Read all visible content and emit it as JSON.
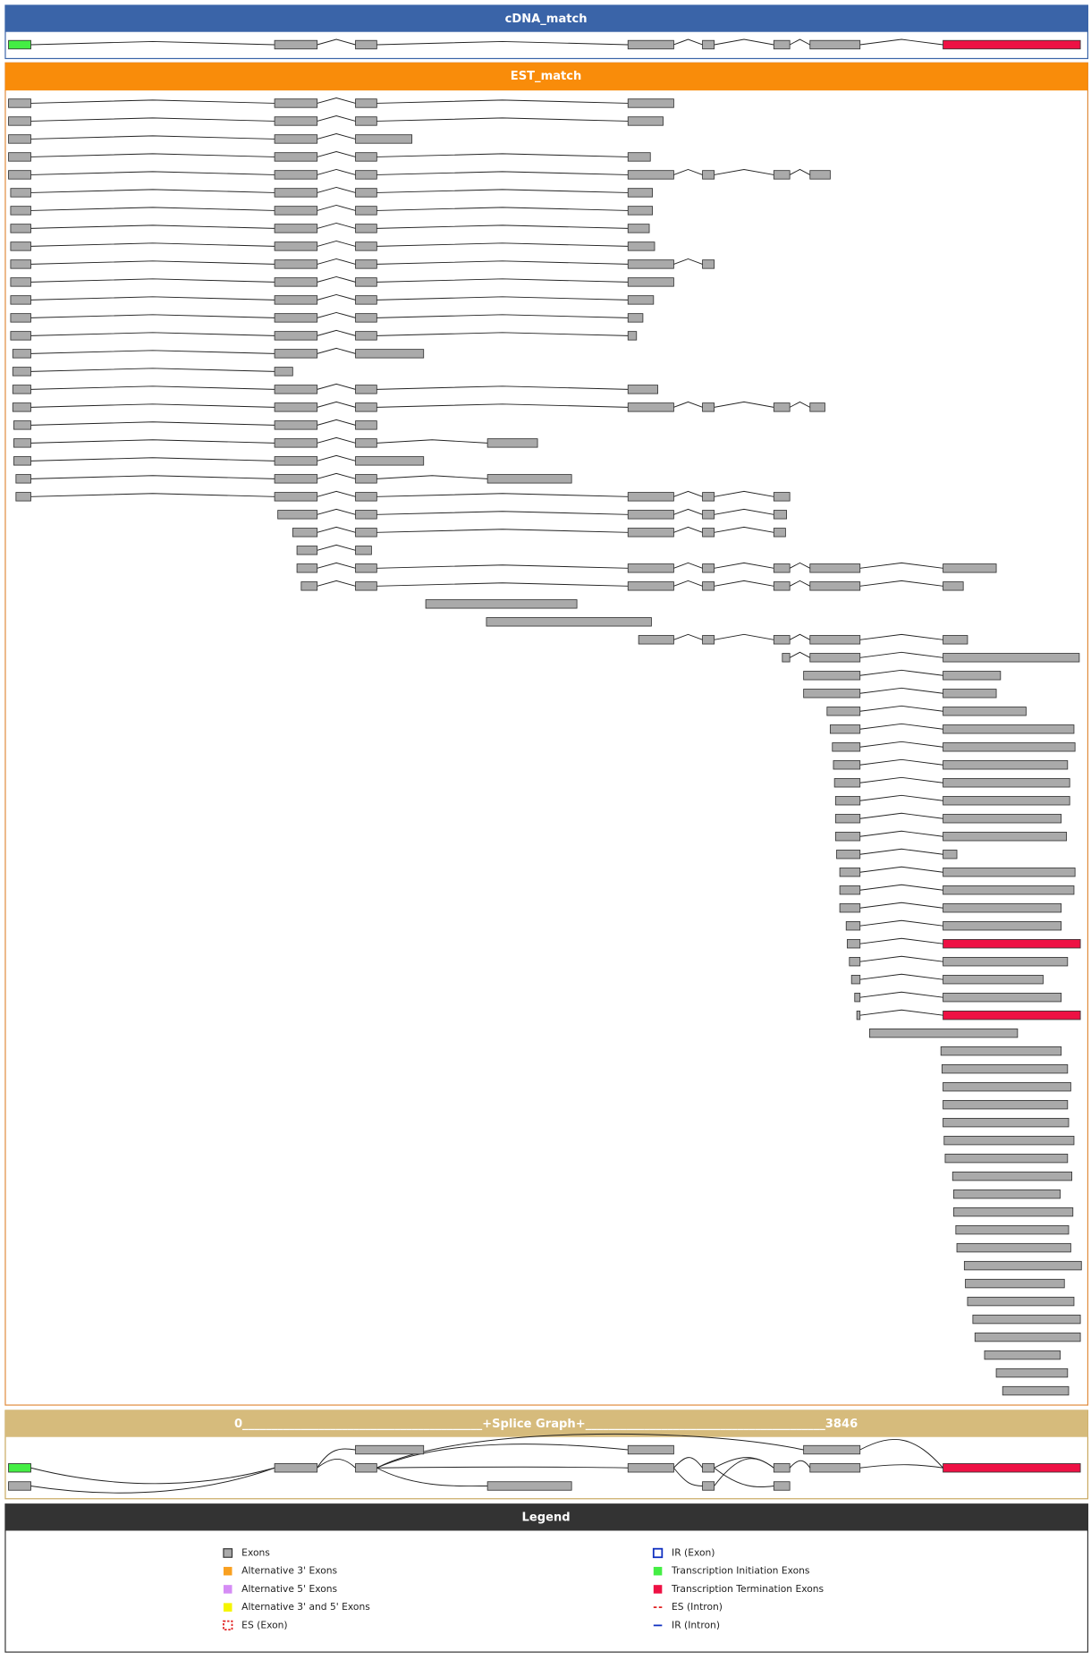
{
  "panels": {
    "cdna": {
      "title": "cDNA_match"
    },
    "est": {
      "title": "EST_match"
    },
    "splice_graph": {
      "title": "0_________________________________________+Splice Graph+_________________________________________3846"
    },
    "legend": {
      "title": "Legend",
      "items": [
        "Exons",
        "Alternative 3' Exons",
        "Alternative 5' Exons",
        "Alternative 3' and 5' Exons",
        "ES (Exon)",
        "IR (Exon)",
        "Transcription Initiation Exons",
        "Transcription Termination Exons",
        "ES (Intron)",
        "IR (Intron)"
      ]
    }
  }
}
